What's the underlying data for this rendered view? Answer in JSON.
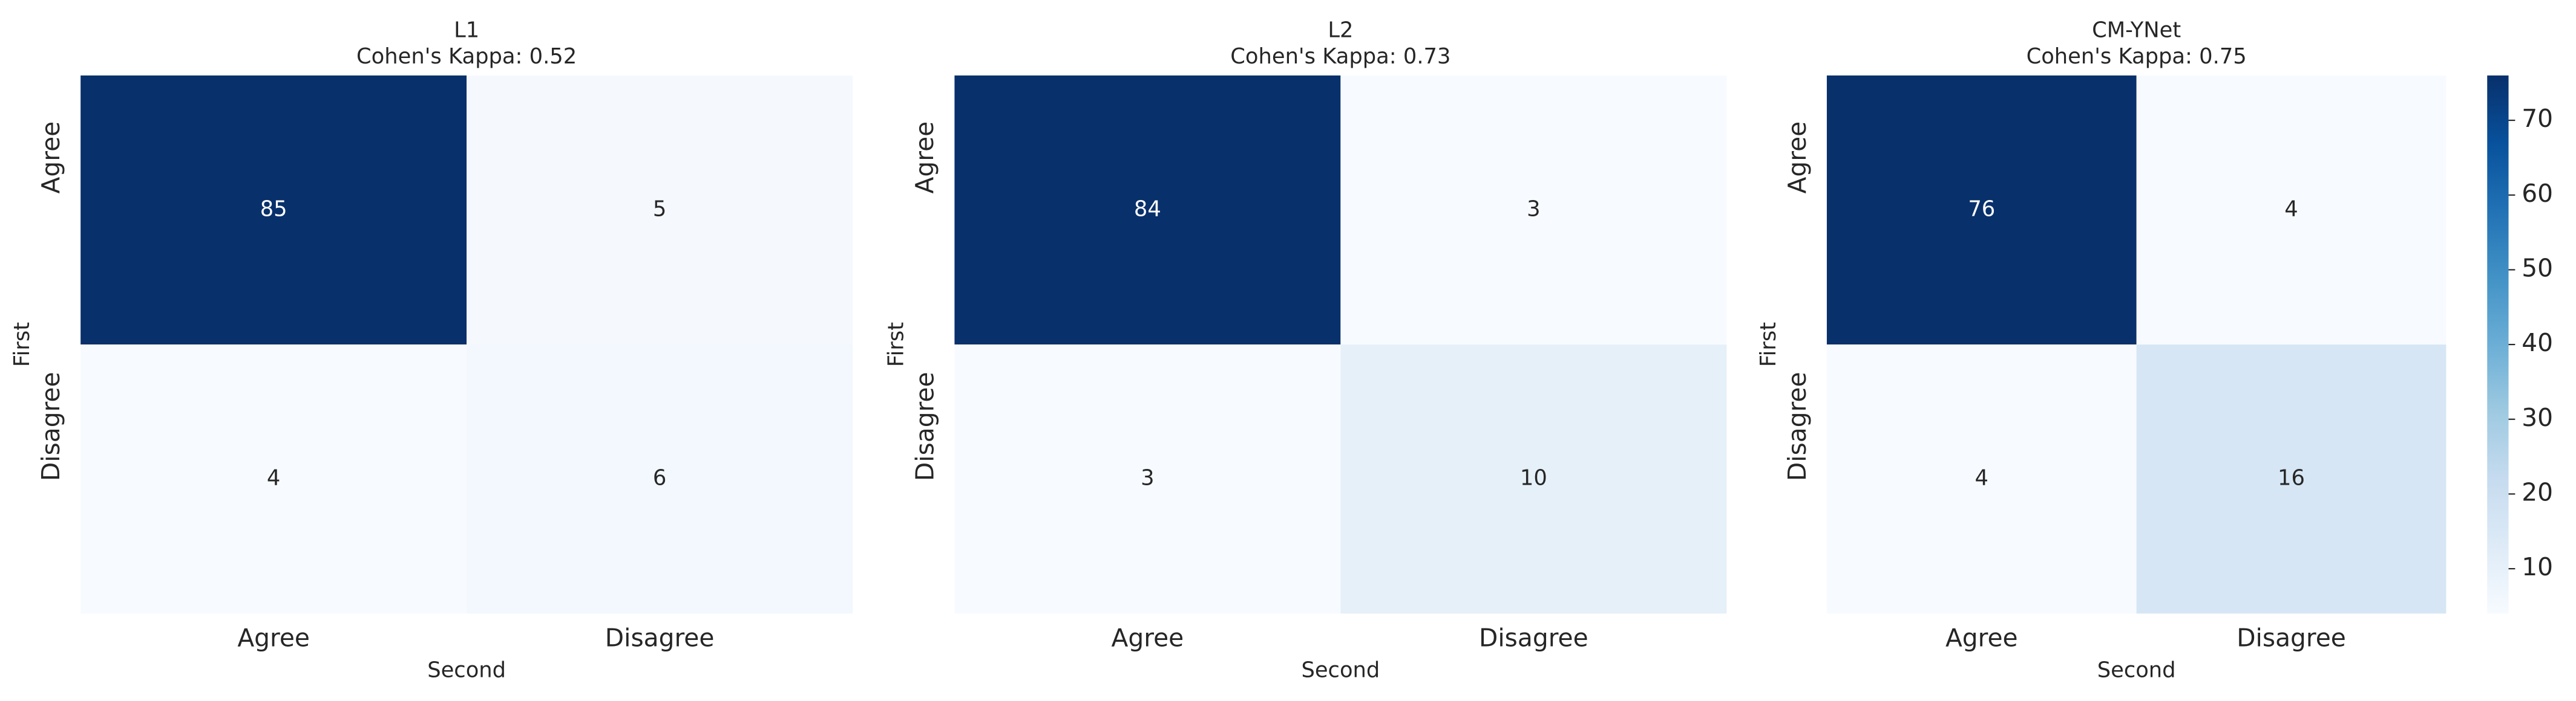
{
  "chart_data": [
    {
      "type": "heatmap",
      "title": "L1",
      "subtitle": "Cohen's Kappa: 0.52",
      "xlabel": "Second",
      "ylabel": "First",
      "x_categories": [
        "Agree",
        "Disagree"
      ],
      "y_categories": [
        "Agree",
        "Disagree"
      ],
      "values": [
        [
          85,
          5
        ],
        [
          4,
          6
        ]
      ],
      "colormap": "Blues"
    },
    {
      "type": "heatmap",
      "title": "L2",
      "subtitle": "Cohen's Kappa: 0.73",
      "xlabel": "Second",
      "ylabel": "First",
      "x_categories": [
        "Agree",
        "Disagree"
      ],
      "y_categories": [
        "Agree",
        "Disagree"
      ],
      "values": [
        [
          84,
          3
        ],
        [
          3,
          10
        ]
      ],
      "colormap": "Blues"
    },
    {
      "type": "heatmap",
      "title": "CM-YNet",
      "subtitle": "Cohen's Kappa: 0.75",
      "xlabel": "Second",
      "ylabel": "First",
      "x_categories": [
        "Agree",
        "Disagree"
      ],
      "y_categories": [
        "Agree",
        "Disagree"
      ],
      "values": [
        [
          76,
          4
        ],
        [
          4,
          16
        ]
      ],
      "colormap": "Blues",
      "colorbar": {
        "lim": [
          4,
          76
        ],
        "ticks": [
          10,
          20,
          30,
          40,
          50,
          60,
          70
        ]
      }
    }
  ]
}
